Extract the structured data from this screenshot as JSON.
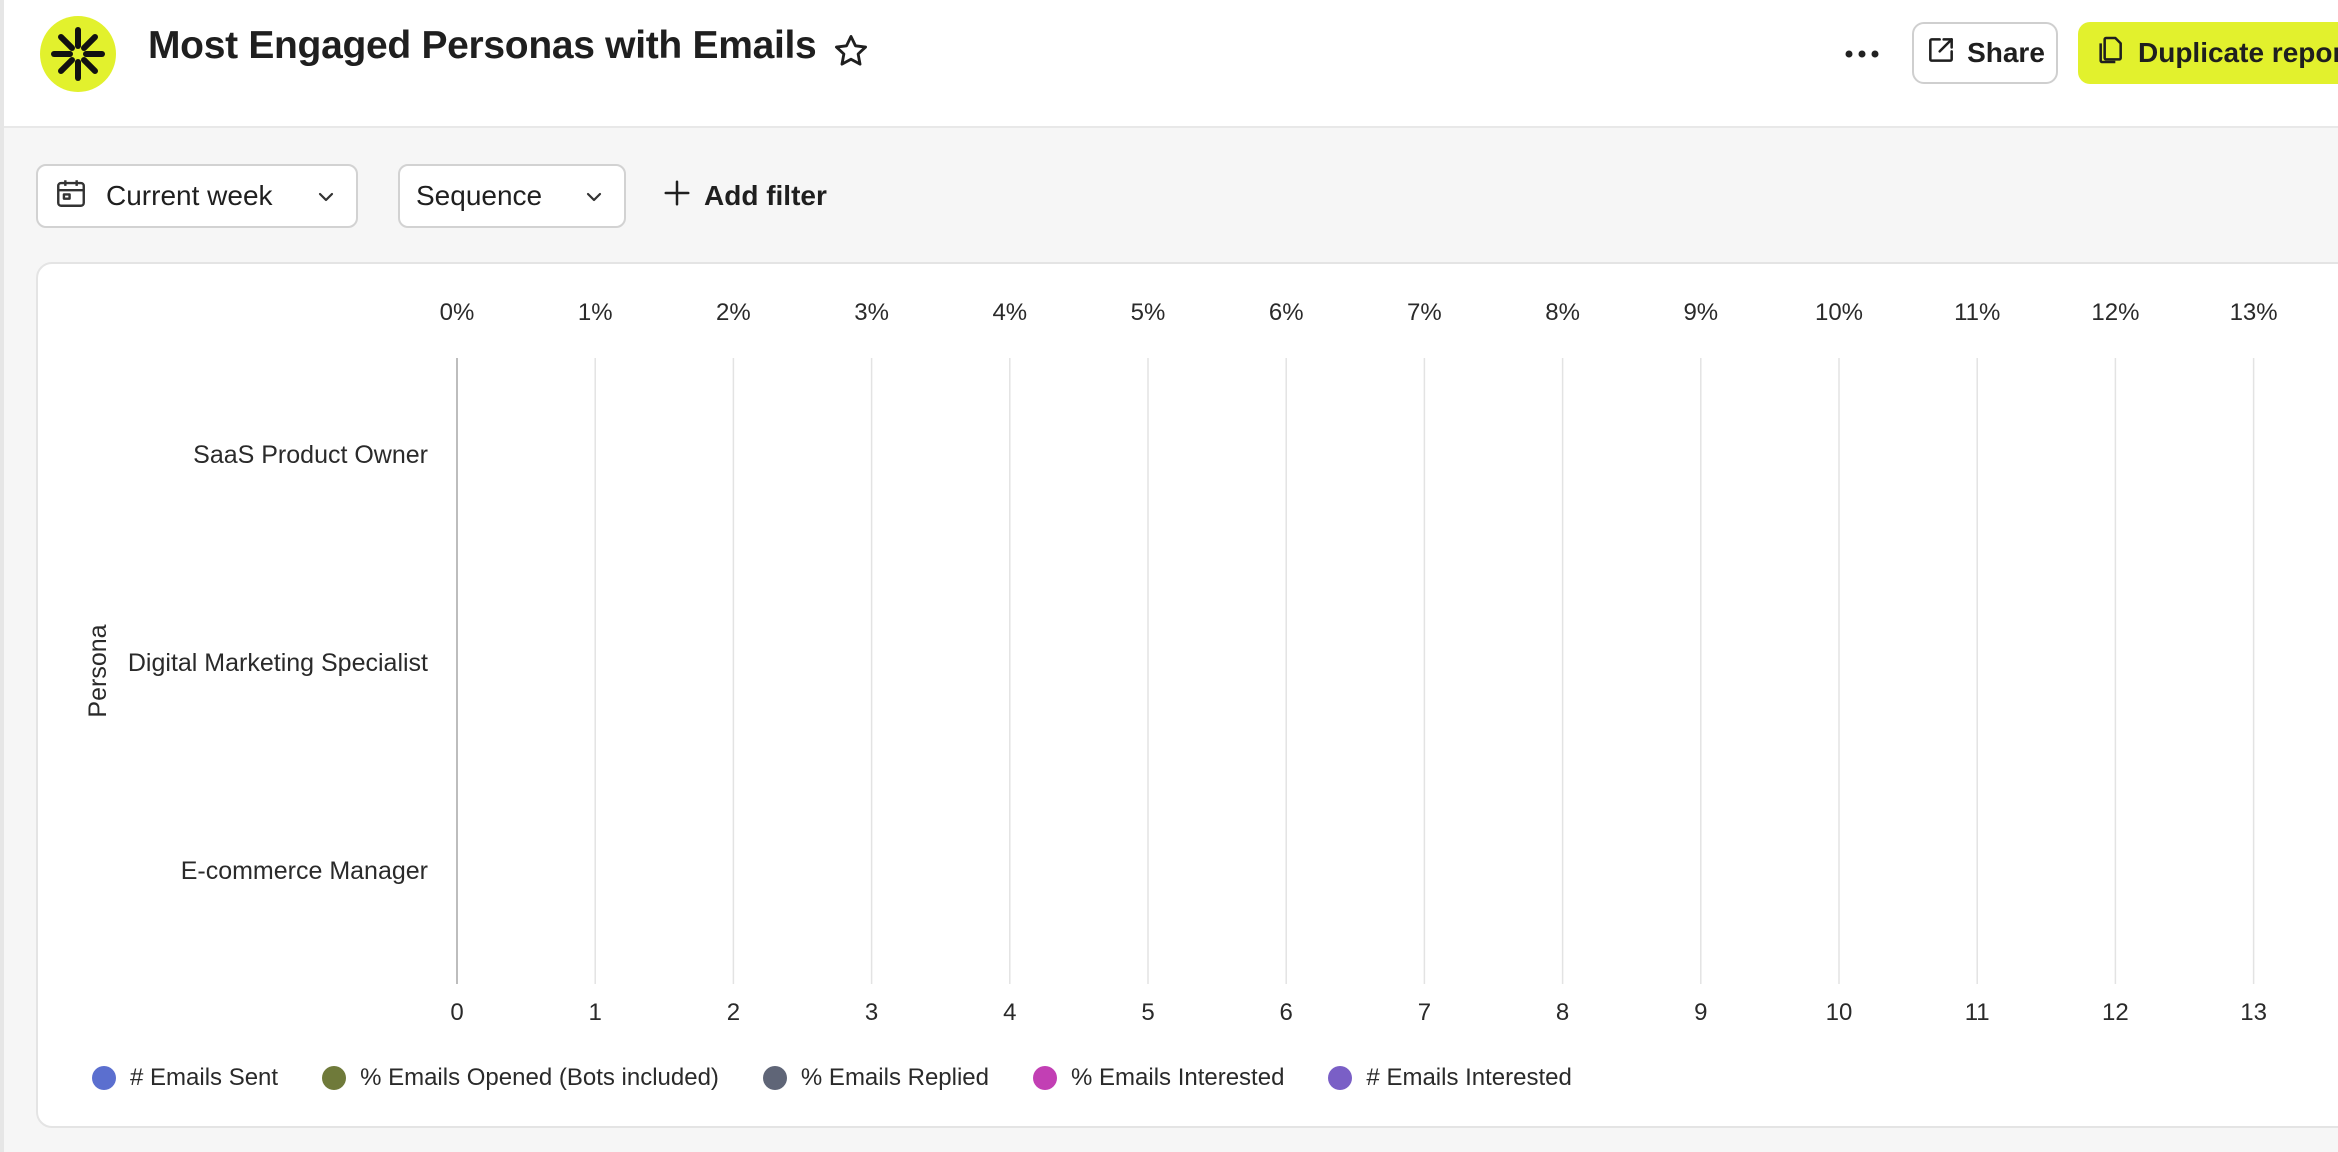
{
  "header": {
    "title": "Most Engaged Personas with Emails",
    "share_label": "Share",
    "duplicate_label": "Duplicate report",
    "brand_color": "#e2f12d"
  },
  "filters": {
    "date_range": "Current week",
    "group_by": "Sequence",
    "add_filter_label": "Add filter"
  },
  "icons": [
    "logo-icon",
    "star-icon",
    "more-icon",
    "share-icon",
    "copy-icon",
    "calendar-icon",
    "chevron-down-icon",
    "plus-icon"
  ],
  "chart_data": {
    "type": "bar",
    "orientation": "horizontal",
    "ylabel": "Persona",
    "categories": [
      "SaaS Product Owner",
      "Digital Marketing Specialist",
      "E-commerce Manager"
    ],
    "x_top_ticks": [
      "0%",
      "1%",
      "2%",
      "3%",
      "4%",
      "5%",
      "6%",
      "7%",
      "8%",
      "9%",
      "10%",
      "11%",
      "12%",
      "13%"
    ],
    "x_bottom_ticks": [
      "0",
      "1",
      "2",
      "3",
      "4",
      "5",
      "6",
      "7",
      "8",
      "9",
      "10",
      "11",
      "12",
      "13"
    ],
    "xlim": [
      0,
      13
    ],
    "grid": "vertical",
    "legend_position": "bottom-left",
    "series": [
      {
        "name": "# Emails Sent",
        "color": "#5b6fcf",
        "values": [
          0,
          0,
          0
        ]
      },
      {
        "name": "% Emails Opened (Bots included)",
        "color": "#6f7a3a",
        "values": [
          0,
          0,
          0
        ]
      },
      {
        "name": "% Emails Replied",
        "color": "#5f6577",
        "values": [
          0,
          0,
          0
        ]
      },
      {
        "name": "% Emails Interested",
        "color": "#c23fb4",
        "values": [
          0,
          0,
          0
        ]
      },
      {
        "name": "# Emails Interested",
        "color": "#7a5fc6",
        "values": [
          0,
          0,
          0
        ]
      }
    ]
  }
}
